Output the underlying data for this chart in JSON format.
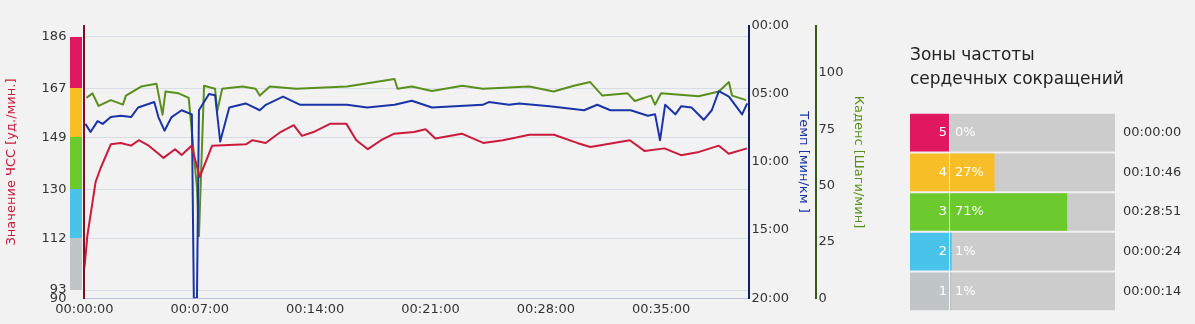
{
  "chart_data": [
    {
      "type": "line",
      "xlim": [
        0,
        40.3
      ],
      "xticks": [
        {
          "value": 0,
          "label": "00:00:00"
        },
        {
          "value": 7,
          "label": "00:07:00"
        },
        {
          "value": 14,
          "label": "00:14:00"
        },
        {
          "value": 21,
          "label": "00:21:00"
        },
        {
          "value": 28,
          "label": "00:28:00"
        },
        {
          "value": 35,
          "label": "00:35:00"
        }
      ],
      "ylabel": "Значение ЧСС [уд./мин.]",
      "ylim": [
        90,
        190
      ],
      "yticks": [
        90,
        93,
        112,
        130,
        149,
        167,
        186
      ],
      "y2label": "Темп [мин/км ]",
      "y2lim": [
        20,
        0
      ],
      "y2ticks": [
        {
          "value": 0,
          "label": "00:00"
        },
        {
          "value": 5,
          "label": "05:00"
        },
        {
          "value": 10,
          "label": "10:00"
        },
        {
          "value": 15,
          "label": "15:00"
        },
        {
          "value": 20,
          "label": "20:00"
        }
      ],
      "y3label": "Каденс [Шаги/мин]",
      "y3lim": [
        0,
        121
      ],
      "y3ticks": [
        0,
        25,
        50,
        75,
        100
      ],
      "grid": "y",
      "series": [
        {
          "color": "#cc1a3c",
          "x": [
            0,
            0.18,
            0.68,
            0.98,
            1.6,
            2.21,
            2.83,
            3.3,
            3.9,
            4.5,
            4.8,
            5.5,
            5.9,
            6.5,
            7.0,
            7.75,
            9.8,
            10.2,
            11.0,
            11.9,
            12.7,
            13.2,
            13.9,
            14.9,
            15.9,
            16.5,
            17.2,
            18.0,
            18.8,
            20.0,
            20.7,
            21.3,
            22.9,
            24.2,
            25.4,
            27.0,
            28.5,
            29.9,
            30.7,
            33.1,
            34.0,
            35.2,
            36.2,
            37.3,
            38.5,
            39.1,
            40.2
          ],
          "values": [
            101,
            113,
            132.7,
            137.7,
            146.5,
            147,
            146,
            148,
            146,
            143,
            141.5,
            144.7,
            142.6,
            146,
            134.5,
            146,
            146.5,
            148,
            147,
            151,
            153.5,
            149.6,
            151,
            154,
            154,
            148,
            144.7,
            148,
            150.4,
            151,
            152,
            148.6,
            150.4,
            147,
            148,
            150,
            150,
            147,
            145.5,
            148,
            144,
            145,
            142.5,
            143.7,
            146,
            143,
            145
          ]
        },
        {
          "color": "#1a34a8",
          "axis": "y2",
          "x": [
            0.06,
            0.37,
            0.8,
            1.11,
            1.6,
            2.21,
            2.83,
            3.26,
            4.24,
            4.49,
            4.86,
            5.29,
            5.9,
            6.52,
            6.64,
            6.83,
            6.95,
            7.56,
            7.93,
            8.24,
            8.79,
            9.78,
            10.64,
            11.01,
            12.05,
            13.1,
            14.94,
            15.93,
            17.16,
            18.82,
            19.87,
            21.09,
            24.17,
            24.54,
            25.77,
            26.38,
            28.23,
            30.32,
            31.12,
            31.92,
            33.15,
            34.19,
            34.63,
            34.93,
            35.24,
            35.86,
            36.22,
            36.84,
            37.58,
            38.07,
            38.5,
            39.11,
            39.91,
            40.22
          ],
          "values": [
            7.2,
            7.8,
            7.0,
            7.2,
            6.7,
            6.6,
            6.7,
            6.0,
            5.6,
            6.7,
            7.7,
            6.7,
            6.2,
            6.5,
            20,
            20,
            6.2,
            5.0,
            5.1,
            8.5,
            6.0,
            5.7,
            6.2,
            5.8,
            5.2,
            5.8,
            5.8,
            5.8,
            6.0,
            5.8,
            5.5,
            6.0,
            5.8,
            5.6,
            5.8,
            5.7,
            5.9,
            6.2,
            5.8,
            6.2,
            6.2,
            6.6,
            6.5,
            8.4,
            5.8,
            6.5,
            5.9,
            6.0,
            6.9,
            6.2,
            4.8,
            5.2,
            6.5,
            5.7
          ]
        },
        {
          "color": "#5a8f1e",
          "axis": "y3",
          "x": [
            0.12,
            0.49,
            0.86,
            1.6,
            2.34,
            2.52,
            3.44,
            4.37,
            4.74,
            4.92,
            5.72,
            6.33,
            6.83,
            6.95,
            7.26,
            7.93,
            8.06,
            8.36,
            9.59,
            10.39,
            10.64,
            11.25,
            12.85,
            15.93,
            18.82,
            19.0,
            19.87,
            21.09,
            22.94,
            24.17,
            27.0,
            28.47,
            29.71,
            30.69,
            31.43,
            32.96,
            33.4,
            34.38,
            34.63,
            34.99,
            37.27,
            38.5,
            39.11,
            39.3,
            40.16
          ],
          "values": [
            89,
            91,
            85.4,
            88,
            86,
            90,
            94,
            95.3,
            81.5,
            91.8,
            91,
            89,
            49,
            27.5,
            94.4,
            93,
            83,
            93,
            94,
            93,
            90,
            94,
            93,
            94,
            97.4,
            93,
            94,
            92,
            94.4,
            93,
            94,
            91.8,
            94.4,
            96,
            90,
            91,
            87.6,
            90,
            86,
            91,
            89.7,
            91.8,
            96,
            90,
            88
          ]
        }
      ]
    },
    {
      "type": "bar",
      "orientation": "horizontal",
      "title": "Зоны частоты сердечных сокращений",
      "categories": [
        "5",
        "4",
        "3",
        "2",
        "1"
      ],
      "values": [
        0,
        27,
        71,
        1,
        1
      ],
      "colors": [
        "#e0185f",
        "#f7be28",
        "#6dca2e",
        "#4ac3ea",
        "#c0c6c6"
      ],
      "value_labels": [
        "0%",
        "27%",
        "71%",
        "1%",
        "1%"
      ],
      "xlim": [
        0,
        100
      ],
      "tick_labels": "y",
      "annotations": [
        "00:00:00",
        "00:10:46",
        "00:28:51",
        "00:00:24",
        "00:00:14"
      ]
    }
  ]
}
